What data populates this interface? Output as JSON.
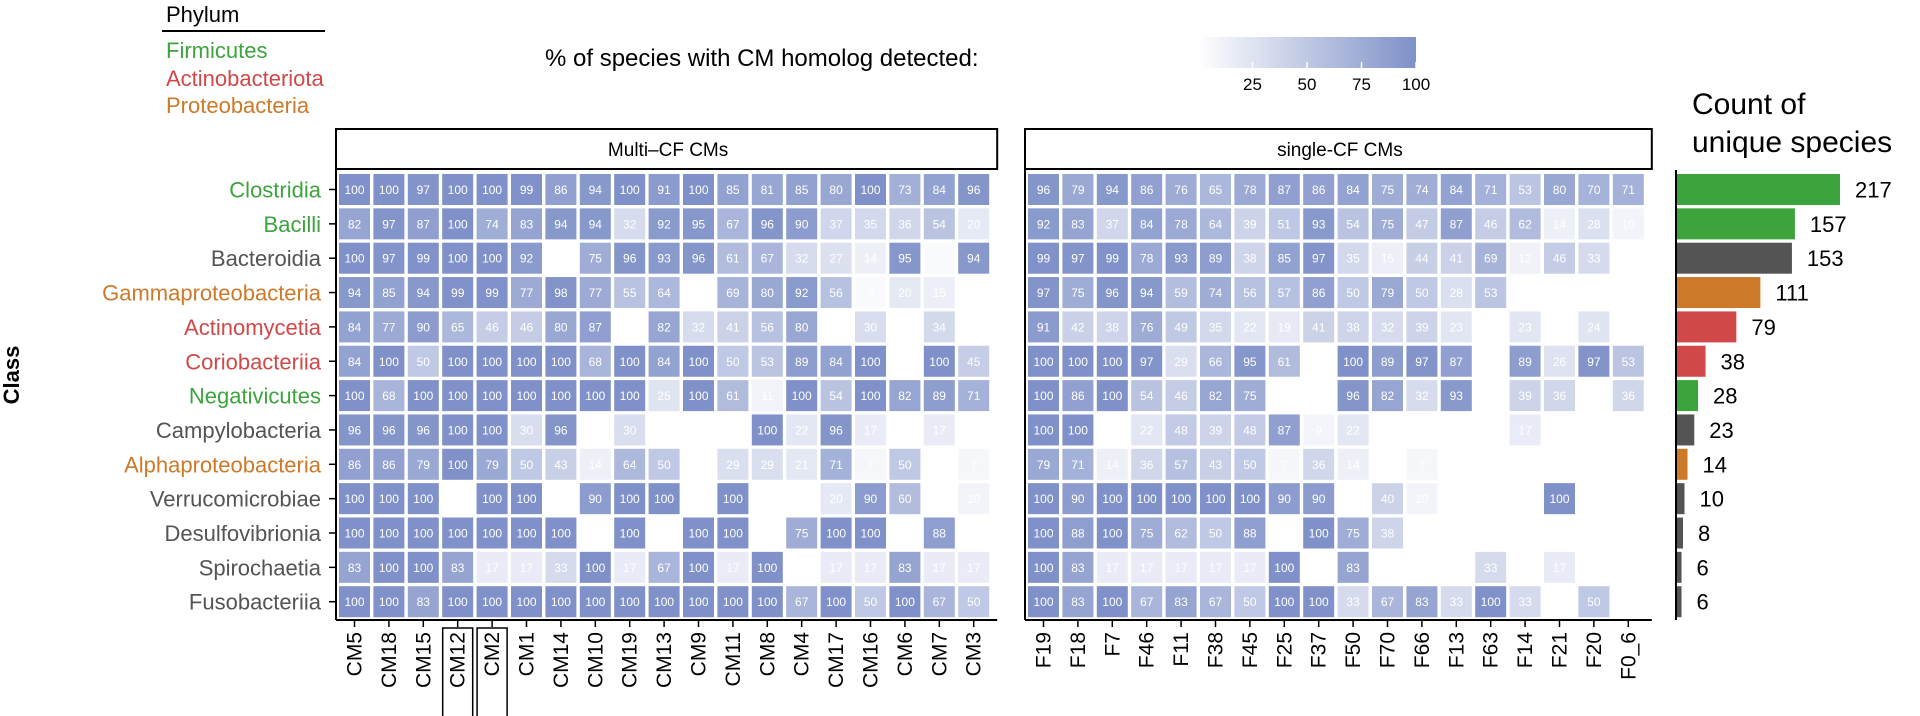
{
  "legend": {
    "title": "% of species with CM homolog detected:",
    "ticks": [
      25,
      50,
      75,
      100
    ],
    "range": [
      0,
      100
    ],
    "low_color": "#ffffff",
    "high_color": "#7f91c8"
  },
  "phylum_legend": {
    "title": "Phylum",
    "entries": [
      {
        "name": "Firmicutes",
        "color": "#3da33d"
      },
      {
        "name": "Actinobacteriota",
        "color": "#d14848"
      },
      {
        "name": "Proteobacteria",
        "color": "#cc7a2a"
      }
    ]
  },
  "colors": {
    "Firmicutes": "#3da33d",
    "Actinobacteriota": "#d14848",
    "Proteobacteria": "#cc7a2a",
    "Other": "#545454"
  },
  "y_axis_title": "Class",
  "count_title_lines": [
    "Count of",
    "unique species"
  ],
  "chart_data": {
    "type": "heatmap",
    "panels": [
      {
        "title": "Multi–CF CMs",
        "columns": [
          "CM5",
          "CM18",
          "CM15",
          "CM12",
          "CM2",
          "CM1",
          "CM14",
          "CM10",
          "CM19",
          "CM13",
          "CM9",
          "CM11",
          "CM8",
          "CM4",
          "CM17",
          "CM16",
          "CM6",
          "CM7",
          "CM3"
        ],
        "boxed_columns": [
          "CM12",
          "CM2"
        ]
      },
      {
        "title": "single-CF CMs",
        "columns": [
          "F19",
          "F18",
          "F7",
          "F46",
          "F11",
          "F38",
          "F45",
          "F25",
          "F37",
          "F50",
          "F70",
          "F66",
          "F13",
          "F63",
          "F14",
          "F21",
          "F20",
          "F0_6"
        ],
        "boxed_columns": []
      }
    ],
    "rows": [
      {
        "class": "Clostridia",
        "phylum": "Firmicutes",
        "count": 217,
        "multi": [
          100,
          100,
          97,
          100,
          100,
          99,
          86,
          94,
          100,
          91,
          100,
          85,
          81,
          85,
          80,
          100,
          73,
          84,
          96
        ],
        "single": [
          96,
          79,
          94,
          86,
          76,
          65,
          78,
          87,
          86,
          84,
          75,
          74,
          84,
          71,
          53,
          80,
          70,
          71
        ]
      },
      {
        "class": "Bacilli",
        "phylum": "Firmicutes",
        "count": 157,
        "multi": [
          82,
          97,
          87,
          100,
          74,
          83,
          94,
          94,
          32,
          92,
          95,
          67,
          96,
          90,
          37,
          35,
          36,
          54,
          20
        ],
        "single": [
          92,
          83,
          37,
          84,
          78,
          64,
          39,
          51,
          93,
          54,
          75,
          47,
          87,
          46,
          62,
          14,
          28,
          10
        ]
      },
      {
        "class": "Bacteroidia",
        "phylum": "Other",
        "count": 153,
        "multi": [
          100,
          97,
          99,
          100,
          100,
          92,
          null,
          75,
          96,
          93,
          96,
          61,
          67,
          32,
          27,
          14,
          95,
          5,
          94
        ],
        "single": [
          99,
          97,
          99,
          78,
          93,
          89,
          38,
          85,
          97,
          35,
          15,
          44,
          41,
          69,
          12,
          46,
          33,
          null
        ]
      },
      {
        "class": "Gammaproteobacteria",
        "phylum": "Proteobacteria",
        "count": 111,
        "multi": [
          94,
          85,
          94,
          99,
          99,
          77,
          98,
          77,
          55,
          64,
          null,
          69,
          80,
          92,
          56,
          5,
          20,
          15,
          null
        ],
        "single": [
          97,
          75,
          96,
          94,
          59,
          74,
          56,
          57,
          86,
          50,
          79,
          50,
          28,
          53,
          null,
          null,
          null,
          null
        ]
      },
      {
        "class": "Actinomycetia",
        "phylum": "Actinobacteriota",
        "count": 79,
        "multi": [
          84,
          77,
          90,
          65,
          46,
          46,
          80,
          87,
          null,
          82,
          32,
          41,
          56,
          80,
          null,
          30,
          null,
          34,
          null
        ],
        "single": [
          91,
          42,
          38,
          76,
          49,
          35,
          22,
          19,
          41,
          38,
          32,
          39,
          23,
          null,
          23,
          null,
          24,
          null
        ]
      },
      {
        "class": "Coriobacteriia",
        "phylum": "Actinobacteriota",
        "count": 38,
        "multi": [
          84,
          100,
          50,
          100,
          100,
          100,
          100,
          68,
          100,
          84,
          100,
          50,
          53,
          89,
          84,
          100,
          null,
          100,
          45
        ],
        "single": [
          100,
          100,
          100,
          97,
          29,
          66,
          95,
          61,
          null,
          100,
          89,
          97,
          87,
          null,
          89,
          26,
          97,
          53
        ]
      },
      {
        "class": "Negativicutes",
        "phylum": "Firmicutes",
        "count": 28,
        "multi": [
          100,
          68,
          100,
          100,
          100,
          100,
          100,
          100,
          100,
          25,
          100,
          61,
          11,
          100,
          54,
          100,
          82,
          89,
          71
        ],
        "single": [
          100,
          86,
          100,
          54,
          46,
          82,
          75,
          null,
          null,
          96,
          82,
          32,
          93,
          null,
          39,
          36,
          null,
          36
        ]
      },
      {
        "class": "Campylobacteria",
        "phylum": "Other",
        "count": 23,
        "multi": [
          96,
          96,
          96,
          100,
          100,
          30,
          96,
          null,
          30,
          null,
          null,
          null,
          100,
          22,
          96,
          17,
          null,
          17,
          null
        ],
        "single": [
          100,
          100,
          null,
          22,
          48,
          39,
          48,
          87,
          9,
          22,
          null,
          null,
          null,
          null,
          17,
          null,
          null,
          null
        ]
      },
      {
        "class": "Alphaproteobacteria",
        "phylum": "Proteobacteria",
        "count": 14,
        "multi": [
          86,
          86,
          79,
          100,
          79,
          50,
          43,
          14,
          64,
          50,
          null,
          29,
          29,
          21,
          71,
          7,
          50,
          null,
          7
        ],
        "single": [
          79,
          71,
          14,
          36,
          57,
          43,
          50,
          7,
          36,
          14,
          null,
          7,
          null,
          null,
          null,
          null,
          null,
          null
        ]
      },
      {
        "class": "Verrucomicrobiae",
        "phylum": "Other",
        "count": 10,
        "multi": [
          100,
          100,
          100,
          null,
          100,
          100,
          null,
          90,
          100,
          100,
          null,
          100,
          null,
          null,
          20,
          90,
          60,
          null,
          10
        ],
        "single": [
          100,
          90,
          100,
          100,
          100,
          100,
          100,
          90,
          90,
          null,
          40,
          10,
          null,
          null,
          null,
          100,
          null,
          null
        ]
      },
      {
        "class": "Desulfovibrionia",
        "phylum": "Other",
        "count": 8,
        "multi": [
          100,
          100,
          100,
          100,
          100,
          100,
          100,
          null,
          100,
          null,
          100,
          100,
          null,
          75,
          100,
          100,
          null,
          88,
          null
        ],
        "single": [
          100,
          88,
          100,
          75,
          62,
          50,
          88,
          null,
          100,
          75,
          38,
          null,
          null,
          null,
          null,
          null,
          null,
          null
        ]
      },
      {
        "class": "Spirochaetia",
        "phylum": "Other",
        "count": 6,
        "multi": [
          83,
          100,
          100,
          83,
          17,
          17,
          33,
          100,
          17,
          67,
          100,
          17,
          100,
          null,
          17,
          17,
          83,
          17,
          17
        ],
        "single": [
          100,
          83,
          17,
          17,
          17,
          17,
          17,
          100,
          null,
          83,
          null,
          null,
          null,
          33,
          null,
          17,
          null,
          null
        ]
      },
      {
        "class": "Fusobacteriia",
        "phylum": "Other",
        "count": 6,
        "multi": [
          100,
          100,
          83,
          100,
          100,
          100,
          100,
          100,
          100,
          100,
          100,
          100,
          100,
          67,
          100,
          50,
          100,
          67,
          50
        ],
        "single": [
          100,
          83,
          100,
          67,
          83,
          67,
          50,
          100,
          100,
          33,
          67,
          83,
          33,
          100,
          33,
          null,
          50,
          null
        ]
      }
    ]
  }
}
